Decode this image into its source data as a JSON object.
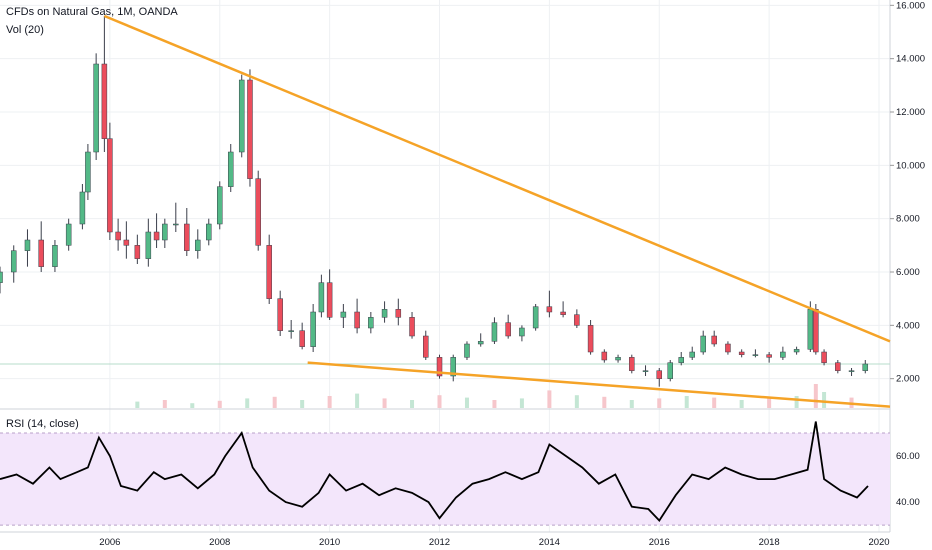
{
  "legend": {
    "title": "CFDs on Natural Gas, 1M, OANDA",
    "volume": "Vol (20)",
    "rsi": "RSI (14, close)"
  },
  "colors": {
    "up": "#53b987",
    "down": "#eb4d5c",
    "wick": "#3a3e4a",
    "trendline": "#f5a327",
    "rsi_line": "#000000",
    "rsi_band": "#f3e6fb",
    "grid": "#eef0f3",
    "price_line": "#b7dccb"
  },
  "chart_data": [
    {
      "type": "candlestick",
      "title": "CFDs on Natural Gas, 1M, OANDA",
      "x_ticks": [
        "2006",
        "2008",
        "2010",
        "2012",
        "2014",
        "2016",
        "2018",
        "2020"
      ],
      "y_ticks": [
        "2.000",
        "4.000",
        "6.000",
        "8.000",
        "10.000",
        "12.000",
        "14.000",
        "16.000"
      ],
      "ylim": [
        0.9,
        16.2
      ],
      "xlim": [
        2004.0,
        2020.2
      ],
      "grid": true,
      "last_price": 2.55,
      "series": [
        {
          "name": "price",
          "x": [
            2004.0,
            2004.25,
            2004.5,
            2004.75,
            2005.0,
            2005.25,
            2005.5,
            2005.6,
            2005.75,
            2005.9,
            2006.0,
            2006.15,
            2006.3,
            2006.5,
            2006.7,
            2006.85,
            2007.0,
            2007.2,
            2007.4,
            2007.6,
            2007.8,
            2008.0,
            2008.2,
            2008.4,
            2008.55,
            2008.7,
            2008.9,
            2009.1,
            2009.3,
            2009.5,
            2009.7,
            2009.85,
            2010.0,
            2010.25,
            2010.5,
            2010.75,
            2011.0,
            2011.25,
            2011.5,
            2011.75,
            2012.0,
            2012.25,
            2012.5,
            2012.75,
            2013.0,
            2013.25,
            2013.5,
            2013.75,
            2014.0,
            2014.25,
            2014.5,
            2014.75,
            2015.0,
            2015.25,
            2015.5,
            2015.75,
            2016.0,
            2016.2,
            2016.4,
            2016.6,
            2016.8,
            2017.0,
            2017.25,
            2017.5,
            2017.75,
            2018.0,
            2018.25,
            2018.5,
            2018.75,
            2018.85,
            2019.0,
            2019.25,
            2019.5,
            2019.75
          ],
          "open": [
            5.6,
            6.0,
            6.8,
            7.2,
            6.2,
            7.0,
            7.8,
            9.0,
            10.5,
            13.8,
            11.0,
            7.5,
            7.2,
            7.0,
            6.5,
            7.5,
            7.2,
            7.8,
            7.8,
            6.8,
            7.2,
            7.8,
            9.2,
            10.5,
            13.2,
            9.5,
            7.0,
            5.0,
            3.8,
            3.8,
            3.2,
            4.5,
            5.6,
            4.3,
            4.5,
            3.9,
            4.3,
            4.6,
            4.3,
            3.6,
            2.8,
            2.1,
            2.8,
            3.3,
            3.4,
            4.1,
            3.6,
            3.9,
            4.7,
            4.5,
            4.4,
            4.0,
            3.0,
            2.7,
            2.8,
            2.3,
            2.3,
            2.0,
            2.6,
            2.8,
            3.0,
            3.6,
            3.3,
            3.0,
            2.9,
            2.9,
            2.8,
            3.0,
            3.1,
            4.6,
            3.0,
            2.6,
            2.3,
            2.3
          ],
          "high": [
            6.2,
            7.0,
            7.6,
            7.9,
            7.2,
            8.0,
            9.3,
            10.8,
            14.2,
            15.6,
            11.6,
            8.0,
            7.9,
            7.4,
            8.0,
            8.2,
            8.0,
            8.6,
            8.4,
            7.6,
            8.0,
            9.4,
            10.8,
            13.4,
            13.6,
            9.8,
            7.4,
            5.3,
            4.2,
            4.1,
            4.8,
            5.9,
            6.1,
            4.8,
            5.0,
            4.5,
            4.9,
            5.0,
            4.5,
            3.8,
            2.9,
            2.9,
            3.4,
            3.7,
            4.3,
            4.4,
            4.0,
            4.8,
            5.3,
            4.9,
            4.6,
            4.2,
            3.1,
            2.9,
            2.9,
            2.5,
            2.4,
            2.7,
            3.0,
            3.2,
            3.8,
            3.8,
            3.4,
            3.1,
            3.1,
            3.0,
            3.2,
            3.2,
            4.9,
            4.8,
            3.1,
            2.7,
            2.4,
            2.7
          ],
          "low": [
            5.2,
            5.6,
            6.2,
            6.0,
            6.0,
            6.8,
            7.6,
            8.7,
            10.2,
            10.5,
            7.2,
            6.8,
            6.5,
            6.3,
            6.2,
            6.9,
            6.9,
            7.5,
            6.6,
            6.5,
            7.0,
            7.6,
            9.0,
            10.3,
            9.2,
            6.8,
            4.8,
            3.6,
            3.5,
            3.1,
            3.0,
            4.3,
            4.2,
            3.9,
            3.7,
            3.7,
            4.1,
            4.0,
            3.5,
            2.7,
            2.0,
            1.9,
            2.7,
            3.2,
            3.3,
            3.5,
            3.4,
            3.8,
            4.3,
            4.3,
            3.9,
            2.9,
            2.6,
            2.6,
            2.2,
            2.1,
            1.7,
            1.9,
            2.5,
            2.7,
            2.9,
            3.2,
            2.9,
            2.8,
            2.8,
            2.6,
            2.7,
            2.9,
            3.0,
            2.9,
            2.5,
            2.2,
            2.1,
            2.2
          ],
          "close": [
            6.0,
            6.8,
            7.2,
            6.2,
            7.0,
            7.8,
            9.0,
            10.5,
            13.8,
            11.0,
            7.5,
            7.2,
            7.0,
            6.5,
            7.5,
            7.2,
            7.8,
            7.8,
            6.8,
            7.2,
            7.8,
            9.2,
            10.5,
            13.2,
            9.5,
            7.0,
            5.0,
            3.8,
            3.8,
            3.2,
            4.5,
            5.6,
            4.3,
            4.5,
            3.9,
            4.3,
            4.6,
            4.3,
            3.6,
            2.8,
            2.1,
            2.8,
            3.3,
            3.4,
            4.1,
            3.6,
            3.9,
            4.7,
            4.5,
            4.4,
            4.0,
            3.0,
            2.7,
            2.8,
            2.3,
            2.3,
            2.0,
            2.6,
            2.8,
            3.0,
            3.6,
            3.3,
            3.0,
            2.9,
            2.9,
            2.8,
            3.0,
            3.1,
            4.6,
            3.0,
            2.6,
            2.3,
            2.3,
            2.55
          ]
        },
        {
          "name": "volume",
          "x": [
            2006.5,
            2007.0,
            2007.5,
            2008.0,
            2008.5,
            2009.0,
            2009.5,
            2010.0,
            2010.5,
            2011.0,
            2011.5,
            2012.0,
            2012.5,
            2013.0,
            2013.5,
            2014.0,
            2014.5,
            2015.0,
            2015.5,
            2016.0,
            2016.5,
            2017.0,
            2017.5,
            2018.0,
            2018.5,
            2018.85,
            2019.0,
            2019.5
          ],
          "values": [
            0.8,
            1.0,
            0.6,
            0.9,
            1.2,
            1.4,
            1.0,
            1.5,
            1.8,
            1.2,
            1.0,
            1.6,
            1.3,
            1.0,
            1.2,
            2.2,
            1.6,
            1.4,
            1.0,
            1.2,
            1.5,
            1.3,
            1.0,
            1.2,
            1.5,
            3.0,
            2.0,
            1.3
          ]
        },
        {
          "name": "trendline",
          "points": [
            [
              2005.9,
              15.6
            ],
            [
              2020.2,
              3.4
            ]
          ]
        },
        {
          "name": "trendline",
          "points": [
            [
              2009.6,
              2.6
            ],
            [
              2020.2,
              0.95
            ]
          ]
        }
      ]
    },
    {
      "type": "line",
      "title": "RSI (14, close)",
      "y_ticks": [
        "40.00",
        "60.00"
      ],
      "ylim": [
        27,
        80
      ],
      "band": [
        30,
        70
      ],
      "series": [
        {
          "name": "RSI",
          "x": [
            2004.0,
            2004.3,
            2004.6,
            2004.9,
            2005.1,
            2005.4,
            2005.6,
            2005.8,
            2006.0,
            2006.2,
            2006.5,
            2006.8,
            2007.0,
            2007.3,
            2007.6,
            2007.9,
            2008.1,
            2008.4,
            2008.6,
            2008.9,
            2009.2,
            2009.5,
            2009.8,
            2010.0,
            2010.3,
            2010.6,
            2010.9,
            2011.2,
            2011.5,
            2011.8,
            2012.0,
            2012.3,
            2012.6,
            2012.9,
            2013.2,
            2013.5,
            2013.8,
            2014.0,
            2014.3,
            2014.6,
            2014.9,
            2015.2,
            2015.5,
            2015.8,
            2016.0,
            2016.3,
            2016.6,
            2016.9,
            2017.2,
            2017.5,
            2017.8,
            2018.1,
            2018.4,
            2018.7,
            2018.85,
            2019.0,
            2019.3,
            2019.6,
            2019.8
          ],
          "values": [
            50,
            52,
            48,
            55,
            50,
            53,
            55,
            68,
            60,
            47,
            45,
            53,
            50,
            52,
            46,
            52,
            60,
            70,
            55,
            45,
            40,
            38,
            44,
            52,
            45,
            48,
            43,
            46,
            44,
            40,
            33,
            42,
            48,
            50,
            53,
            50,
            53,
            65,
            60,
            55,
            48,
            52,
            38,
            37,
            32,
            43,
            52,
            50,
            55,
            52,
            50,
            50,
            52,
            54,
            75,
            50,
            45,
            42,
            47
          ]
        }
      ]
    }
  ]
}
